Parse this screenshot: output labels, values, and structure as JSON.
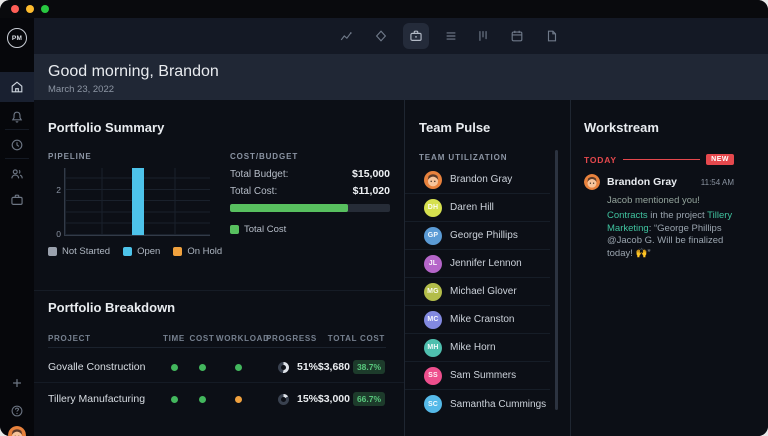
{
  "window": {
    "traffic_lights": {
      "close": "#ff5f57",
      "minimize": "#febc2e",
      "zoom": "#28c840"
    }
  },
  "logo": {
    "text": "PM"
  },
  "sidebar": {
    "items": [
      {
        "icon": "home",
        "active": true
      },
      {
        "icon": "notifications"
      },
      {
        "icon": "recent"
      },
      {
        "icon": "team"
      },
      {
        "icon": "projects"
      }
    ],
    "bottom": [
      {
        "icon": "add"
      },
      {
        "icon": "help"
      },
      {
        "icon": "user-avatar"
      }
    ]
  },
  "topnav": {
    "icons": [
      "reports",
      "milestones",
      "portfolio",
      "list",
      "board",
      "calendar",
      "documents"
    ],
    "active_index": 2
  },
  "header": {
    "greeting": "Good morning, Brandon",
    "date": "March 23, 2022"
  },
  "portfolio_summary": {
    "title": "Portfolio Summary",
    "pipeline_label": "PIPELINE",
    "cost_budget_label": "COST/BUDGET",
    "total_budget_label": "Total Budget:",
    "total_budget_value": "$15,000",
    "total_cost_label": "Total Cost:",
    "total_cost_value": "$11,020",
    "progress_pct": 73.5,
    "bar_color": "#58c05f",
    "cost_legend": "Total Cost",
    "pipeline_legend": [
      {
        "label": "Not Started",
        "color": "#9aa1ad"
      },
      {
        "label": "Open",
        "color": "#4dc3ea"
      },
      {
        "label": "On Hold",
        "color": "#f0a13e"
      }
    ]
  },
  "chart_data": {
    "type": "bar",
    "title": "Pipeline",
    "categories": [
      "Not Started",
      "Open",
      "On Hold"
    ],
    "values": [
      0,
      3,
      0
    ],
    "colors": [
      "#9aa1ad",
      "#4dc3ea",
      "#f0a13e"
    ],
    "ylim": [
      0,
      3
    ],
    "yticks": [
      0,
      2
    ],
    "grid": true,
    "legend_position": "bottom"
  },
  "portfolio_breakdown": {
    "title": "Portfolio Breakdown",
    "columns": [
      "PROJECT",
      "TIME",
      "COST",
      "WORKLOAD",
      "PROGRESS",
      "TOTAL COST"
    ],
    "rows": [
      {
        "project": "Govalle Construction",
        "dots": [
          "#43b75d",
          "#43b75d",
          "#43b75d"
        ],
        "progress": "51%",
        "total_cost": "$3,680",
        "badge": "38.7%"
      },
      {
        "project": "Tillery Manufacturing",
        "dots": [
          "#43b75d",
          "#43b75d",
          "#f0a13e"
        ],
        "progress": "15%",
        "total_cost": "$3,000",
        "badge": "66.7%"
      }
    ]
  },
  "team_pulse": {
    "title": "Team Pulse",
    "subtitle": "TEAM UTILIZATION",
    "members": [
      {
        "name": "Brandon Gray",
        "initials": "",
        "color": "#e8823d",
        "avatar": "face"
      },
      {
        "name": "Daren Hill",
        "initials": "DH",
        "color": "#d6e04f"
      },
      {
        "name": "George Phillips",
        "initials": "GP",
        "color": "#5b9bd5"
      },
      {
        "name": "Jennifer Lennon",
        "initials": "JL",
        "color": "#b565c9"
      },
      {
        "name": "Michael Glover",
        "initials": "MG",
        "color": "#b3bd4a"
      },
      {
        "name": "Mike Cranston",
        "initials": "MC",
        "color": "#8289e0"
      },
      {
        "name": "Mike Horn",
        "initials": "MH",
        "color": "#4fbfae"
      },
      {
        "name": "Sam Summers",
        "initials": "SS",
        "color": "#ee4f8d"
      },
      {
        "name": "Samantha Cummings",
        "initials": "SC",
        "color": "#55b9e8"
      }
    ]
  },
  "workstream": {
    "title": "Workstream",
    "today_label": "TODAY",
    "new_badge": "NEW",
    "accent": "#e5484d",
    "message": {
      "author": "Brandon Gray",
      "time": "11:54 AM",
      "intro": "Jacob mentioned you!",
      "link1": "Contracts",
      "middle": " in the project ",
      "link2": "Tillery Marketing",
      "body": ": “George Phillips @Jacob G. Will be finalized today! ",
      "emoji": "🙌",
      "body_end": "”",
      "link_color": "#3fc29e"
    }
  }
}
